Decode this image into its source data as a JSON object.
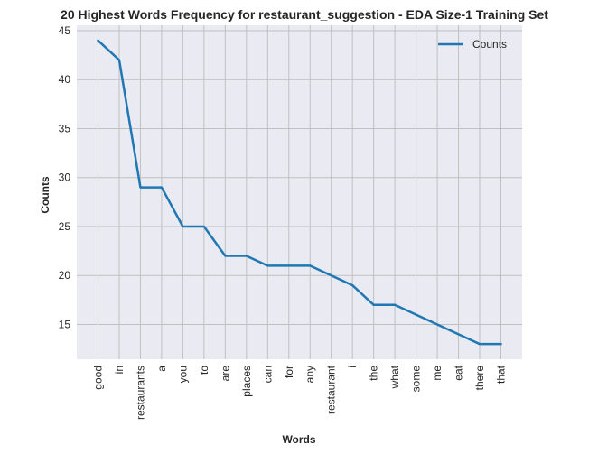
{
  "chart_data": {
    "type": "line",
    "title": "20 Highest Words Frequency for restaurant_suggestion - EDA Size-1 Training Set",
    "xlabel": "Words",
    "ylabel": "Counts",
    "categories": [
      "good",
      "in",
      "restaurants",
      "a",
      "you",
      "to",
      "are",
      "places",
      "can",
      "for",
      "any",
      "restaurant",
      "i",
      "the",
      "what",
      "some",
      "me",
      "eat",
      "there",
      "that"
    ],
    "series": [
      {
        "name": "Counts",
        "color": "#1f77b4",
        "values": [
          44,
          42,
          29,
          29,
          25,
          25,
          22,
          22,
          21,
          21,
          21,
          20,
          19,
          17,
          17,
          16,
          15,
          14,
          13,
          13
        ]
      }
    ],
    "yticks": [
      15,
      20,
      25,
      30,
      35,
      40,
      45
    ],
    "ylim": [
      11.45,
      45.55
    ],
    "grid": true,
    "legend_position": "top-right",
    "background_color": "#eaeaf2",
    "grid_color": "#c0c0c0"
  }
}
